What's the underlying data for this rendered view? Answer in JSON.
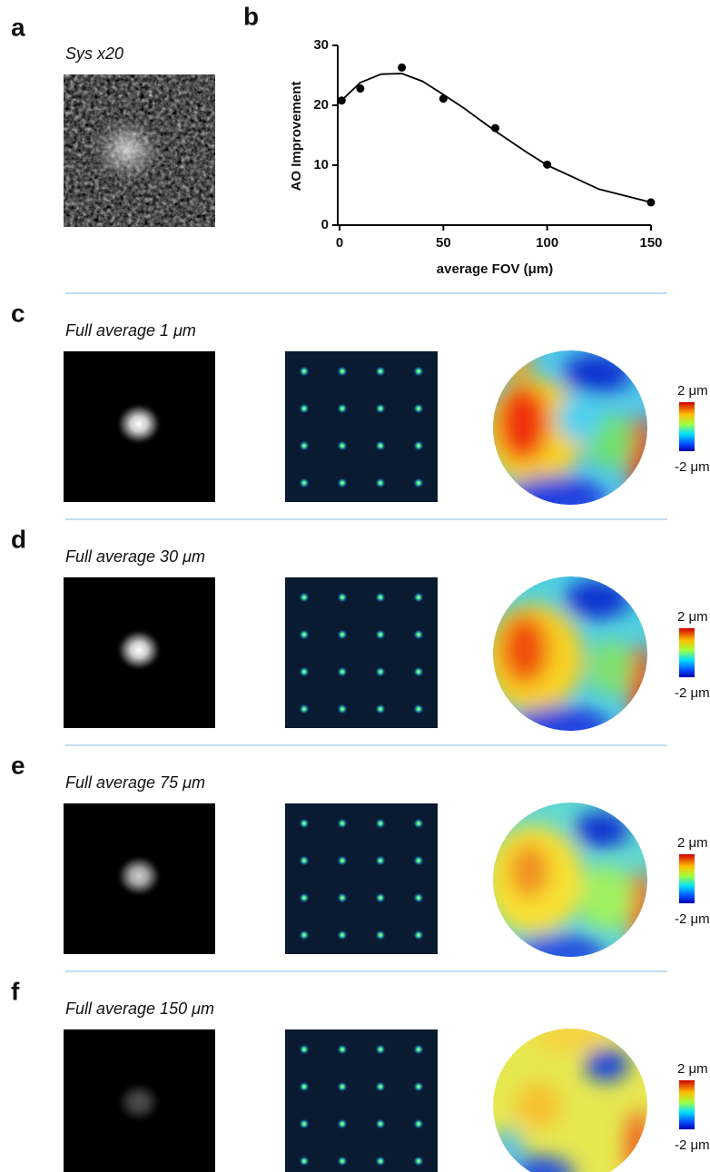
{
  "panels": [
    {
      "letter": "a",
      "label": "Sys x20"
    },
    {
      "letter": "b"
    },
    {
      "letter": "c",
      "label": "Full average 1 μm",
      "scale_max": "2 μm",
      "scale_min": "-2 μm"
    },
    {
      "letter": "d",
      "label": "Full average 30 μm",
      "scale_max": "2 μm",
      "scale_min": "-2 μm"
    },
    {
      "letter": "e",
      "label": "Full average 75 μm",
      "scale_max": "2 μm",
      "scale_min": "-2 μm"
    },
    {
      "letter": "f",
      "label": "Full average 150 μm",
      "scale_max": "2 μm",
      "scale_min": "-2 μm"
    }
  ],
  "chart_data": {
    "type": "scatter",
    "x_label": "average FOV (μm)",
    "y_label": "AO Improvement",
    "x": [
      1,
      10,
      30,
      50,
      75,
      100,
      150
    ],
    "values": [
      20.8,
      22.8,
      26.3,
      21.1,
      16.2,
      10.1,
      3.8
    ],
    "fit": {
      "x": [
        0,
        10,
        20,
        30,
        40,
        50,
        60,
        75,
        90,
        100,
        125,
        150
      ],
      "values": [
        20.5,
        23.8,
        25.2,
        25.3,
        24,
        21.8,
        19.5,
        15.7,
        12.2,
        10,
        6,
        3.8
      ]
    },
    "color": "#000000",
    "xlim": [
      0,
      150
    ],
    "xticks": [
      0,
      50,
      100,
      150
    ],
    "ylim": [
      0,
      30
    ],
    "yticks": [
      0,
      10,
      20,
      30
    ]
  }
}
